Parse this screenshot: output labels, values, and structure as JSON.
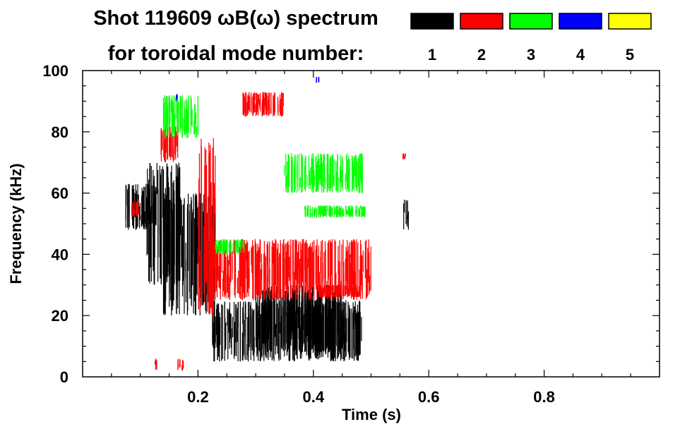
{
  "chart_data": {
    "type": "scatter",
    "title": "Shot 119609 ωB(ω) spectrum",
    "subtitle": "for toroidal mode number:",
    "xlabel": "Time (s)",
    "ylabel": "Frequency (kHz)",
    "xlim": [
      0.0,
      1.0
    ],
    "ylim": [
      0,
      100
    ],
    "x_ticks": [
      0.2,
      0.4,
      0.6,
      0.8
    ],
    "x_tick_labels": [
      "0.2",
      "0.4",
      "0.6",
      "0.8"
    ],
    "y_ticks": [
      0,
      20,
      40,
      60,
      80,
      100
    ],
    "y_tick_labels": [
      "0",
      "20",
      "40",
      "60",
      "80",
      "100"
    ],
    "grid": false,
    "legend_placement": "top-right",
    "series": [
      {
        "name": "1",
        "color": "#000000",
        "regions": [
          {
            "t": [
              0.075,
              0.13
            ],
            "f": [
              48,
              63
            ]
          },
          {
            "t": [
              0.11,
              0.17
            ],
            "f": [
              30,
              70
            ]
          },
          {
            "t": [
              0.14,
              0.23
            ],
            "f": [
              20,
              60
            ]
          },
          {
            "t": [
              0.225,
              0.485
            ],
            "f": [
              5,
              25
            ]
          },
          {
            "t": [
              0.3,
              0.45
            ],
            "f": [
              8,
              30
            ]
          },
          {
            "t": [
              0.555,
              0.565
            ],
            "f": [
              48,
              58
            ]
          }
        ]
      },
      {
        "name": "2",
        "color": "#ff0000",
        "regions": [
          {
            "t": [
              0.085,
              0.1
            ],
            "f": [
              52,
              58
            ]
          },
          {
            "t": [
              0.135,
              0.165
            ],
            "f": [
              70,
              82
            ]
          },
          {
            "t": [
              0.2,
              0.23
            ],
            "f": [
              20,
              78
            ]
          },
          {
            "t": [
              0.275,
              0.35
            ],
            "f": [
              85,
              93
            ]
          },
          {
            "t": [
              0.225,
              0.5
            ],
            "f": [
              25,
              45
            ]
          },
          {
            "t": [
              0.41,
              0.485
            ],
            "f": [
              26,
              30
            ]
          },
          {
            "t": [
              0.125,
              0.13
            ],
            "f": [
              2,
              6
            ]
          },
          {
            "t": [
              0.165,
              0.175
            ],
            "f": [
              2,
              6
            ]
          },
          {
            "t": [
              0.555,
              0.56
            ],
            "f": [
              71,
              73
            ]
          }
        ]
      },
      {
        "name": "3",
        "color": "#00ff00",
        "regions": [
          {
            "t": [
              0.14,
              0.2
            ],
            "f": [
              78,
              92
            ]
          },
          {
            "t": [
              0.35,
              0.485
            ],
            "f": [
              60,
              73
            ]
          },
          {
            "t": [
              0.385,
              0.49
            ],
            "f": [
              52,
              56
            ]
          },
          {
            "t": [
              0.23,
              0.28
            ],
            "f": [
              40,
              45
            ]
          }
        ]
      },
      {
        "name": "4",
        "color": "#0000ff",
        "regions": [
          {
            "t": [
              0.16,
              0.165
            ],
            "f": [
              90,
              93
            ]
          },
          {
            "t": [
              0.405,
              0.41
            ],
            "f": [
              96,
              98
            ]
          }
        ]
      },
      {
        "name": "5",
        "color": "#ffff00",
        "regions": []
      }
    ]
  }
}
